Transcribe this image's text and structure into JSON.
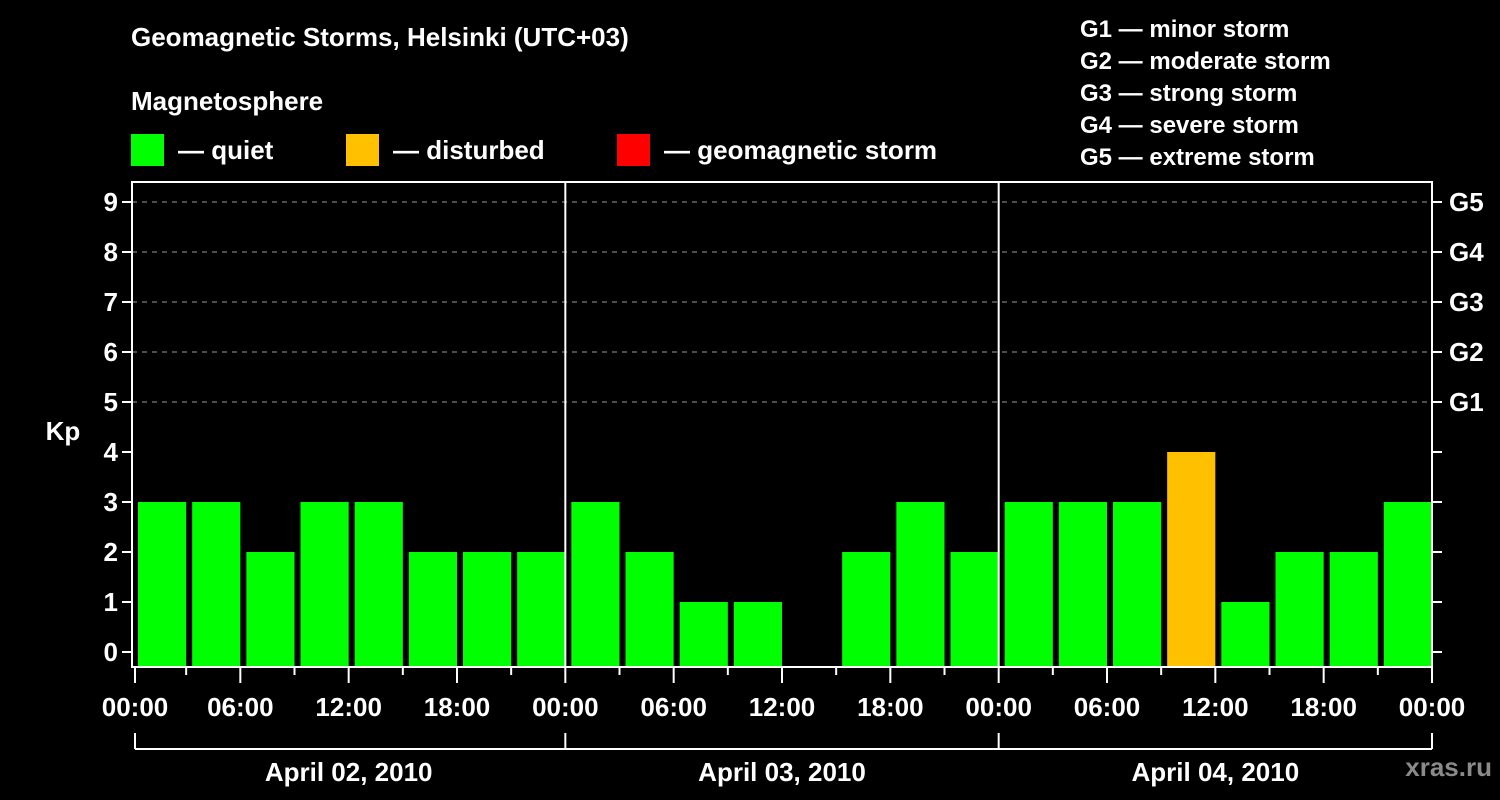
{
  "header": {
    "title": "Geomagnetic Storms, Helsinki (UTC+03)",
    "subtitle": "Magnetosphere"
  },
  "legend": {
    "items": [
      {
        "label": "— quiet",
        "color": "#00ff00"
      },
      {
        "label": "— disturbed",
        "color": "#ffc000"
      },
      {
        "label": "— geomagnetic storm",
        "color": "#ff0000"
      }
    ]
  },
  "storm_scale": {
    "items": [
      "G1 — minor storm",
      "G2 — moderate storm",
      "G3 — strong storm",
      "G4 — severe storm",
      "G5 — extreme storm"
    ]
  },
  "watermark": "xras.ru",
  "chart_data": {
    "type": "bar",
    "title": "Geomagnetic Storms, Helsinki (UTC+03)",
    "subtitle": "Magnetosphere",
    "ylabel": "Kp",
    "xlabel": "",
    "ylim": [
      0,
      9
    ],
    "y_ticks": [
      0,
      1,
      2,
      3,
      4,
      5,
      6,
      7,
      8,
      9
    ],
    "y2_ticks": [
      {
        "value": 5,
        "label": "G1"
      },
      {
        "value": 6,
        "label": "G2"
      },
      {
        "value": 7,
        "label": "G3"
      },
      {
        "value": 8,
        "label": "G4"
      },
      {
        "value": 9,
        "label": "G5"
      }
    ],
    "grid": {
      "horizontal_dashed_at": [
        5,
        6,
        7,
        8,
        9
      ]
    },
    "x_tick_labels": [
      "00:00",
      "06:00",
      "12:00",
      "18:00",
      "00:00",
      "06:00",
      "12:00",
      "18:00",
      "00:00",
      "06:00",
      "12:00",
      "18:00",
      "00:00"
    ],
    "days": [
      "April 02, 2010",
      "April 03, 2010",
      "April 04, 2010"
    ],
    "interval_hours": 3,
    "categories": [
      "04-02 00-03",
      "04-02 03-06",
      "04-02 06-09",
      "04-02 09-12",
      "04-02 12-15",
      "04-02 15-18",
      "04-02 18-21",
      "04-02 21-24",
      "04-03 00-03",
      "04-03 03-06",
      "04-03 06-09",
      "04-03 09-12",
      "04-03 12-15",
      "04-03 15-18",
      "04-03 18-21",
      "04-03 21-24",
      "04-04 00-03",
      "04-04 03-06",
      "04-04 06-09",
      "04-04 09-12",
      "04-04 12-15",
      "04-04 15-18",
      "04-04 18-21",
      "04-04 21-24"
    ],
    "values": [
      3,
      3,
      2,
      3,
      3,
      2,
      2,
      2,
      3,
      2,
      1,
      1,
      0,
      2,
      3,
      2,
      3,
      3,
      3,
      4,
      1,
      2,
      2,
      3
    ],
    "status": [
      "quiet",
      "quiet",
      "quiet",
      "quiet",
      "quiet",
      "quiet",
      "quiet",
      "quiet",
      "quiet",
      "quiet",
      "quiet",
      "quiet",
      "quiet",
      "quiet",
      "quiet",
      "quiet",
      "quiet",
      "quiet",
      "quiet",
      "disturbed",
      "quiet",
      "quiet",
      "quiet",
      "quiet"
    ],
    "colors": {
      "quiet": "#00ff00",
      "disturbed": "#ffc000",
      "storm": "#ff0000"
    },
    "legend_position": "top"
  }
}
